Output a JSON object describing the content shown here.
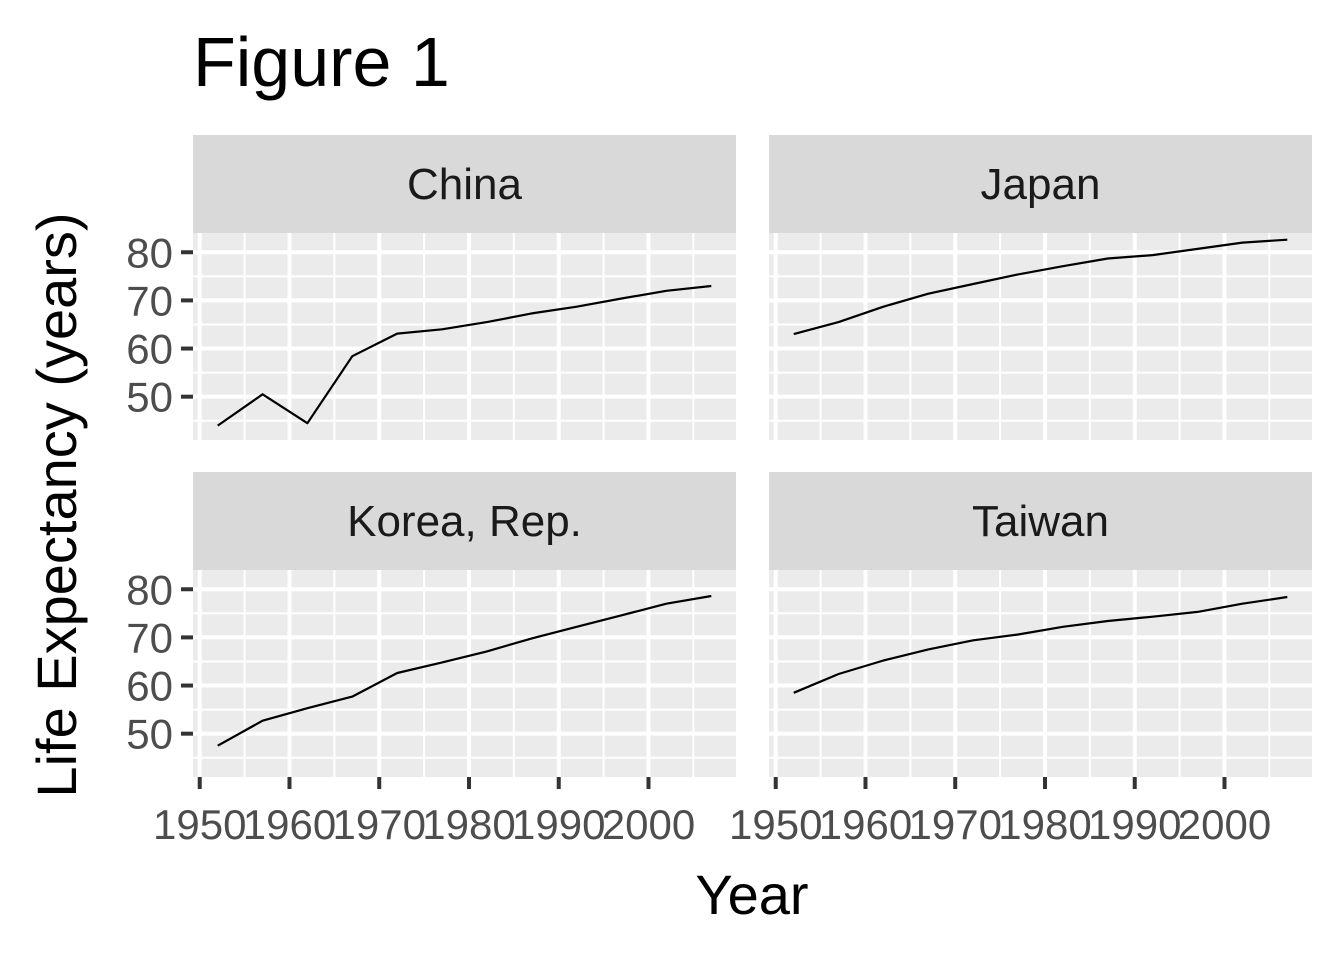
{
  "title": "Figure 1",
  "chart_data": {
    "type": "line",
    "xlabel": "Year",
    "ylabel": "Life Expectancy (years)",
    "xlim": [
      1949.25,
      2009.75
    ],
    "ylim": [
      41,
      84
    ],
    "xticks": [
      1950,
      1960,
      1970,
      1980,
      1990,
      2000
    ],
    "yticks": [
      50,
      60,
      70,
      80
    ],
    "grid": true,
    "legend": "none",
    "colors": {
      "panel_bg": "#ebebeb",
      "strip_bg": "#d9d9d9",
      "grid": "#ffffff",
      "line": "#000000",
      "tick": "#333333"
    },
    "facets": [
      {
        "name": "China",
        "x": [
          1952,
          1957,
          1962,
          1967,
          1972,
          1977,
          1982,
          1987,
          1992,
          1997,
          2002,
          2007
        ],
        "y": [
          44.0,
          50.5,
          44.5,
          58.4,
          63.1,
          64.0,
          65.5,
          67.3,
          68.7,
          70.4,
          72.0,
          73.0
        ]
      },
      {
        "name": "Japan",
        "x": [
          1952,
          1957,
          1962,
          1967,
          1972,
          1977,
          1982,
          1987,
          1992,
          1997,
          2002,
          2007
        ],
        "y": [
          63.0,
          65.5,
          68.7,
          71.4,
          73.4,
          75.4,
          77.1,
          78.7,
          79.4,
          80.7,
          82.0,
          82.6
        ]
      },
      {
        "name": "Korea, Rep.",
        "x": [
          1952,
          1957,
          1962,
          1967,
          1972,
          1977,
          1982,
          1987,
          1992,
          1997,
          2002,
          2007
        ],
        "y": [
          47.5,
          52.7,
          55.3,
          57.7,
          62.6,
          64.8,
          67.1,
          69.8,
          72.2,
          74.6,
          77.0,
          78.6
        ]
      },
      {
        "name": "Taiwan",
        "x": [
          1952,
          1957,
          1962,
          1967,
          1972,
          1977,
          1982,
          1987,
          1992,
          1997,
          2002,
          2007
        ],
        "y": [
          58.5,
          62.4,
          65.2,
          67.5,
          69.4,
          70.6,
          72.2,
          73.4,
          74.3,
          75.3,
          77.0,
          78.4
        ]
      }
    ]
  }
}
